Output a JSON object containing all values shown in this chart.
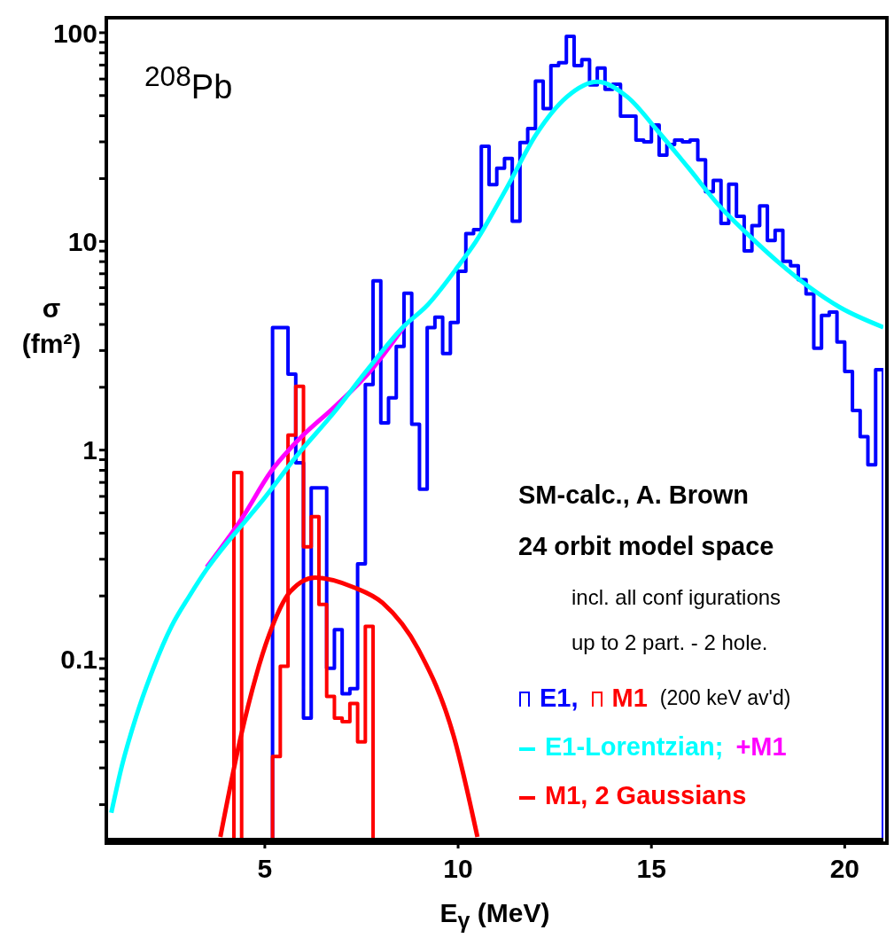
{
  "chart_data": {
    "type": "line",
    "xlabel": "E$_{γ}$ (MeV)",
    "ylabel": "σ (fm²)",
    "log": "y",
    "xlim": [
      0.9,
      21
    ],
    "xticks": [
      5,
      10,
      15,
      20
    ],
    "ylim": [
      0.0136,
      118
    ],
    "yticks": [
      {
        "value": 0.02,
        "label": null
      },
      {
        "value": 0.03,
        "label": null
      },
      {
        "value": 0.04,
        "label": null
      },
      {
        "value": 0.05,
        "label": null
      },
      {
        "value": 0.06,
        "label": null
      },
      {
        "value": 0.07,
        "label": null
      },
      {
        "value": 0.08,
        "label": null
      },
      {
        "value": 0.09,
        "label": null
      },
      0.1,
      {
        "value": 0.2,
        "label": null
      },
      {
        "value": 0.3,
        "label": null
      },
      {
        "value": 0.4,
        "label": null
      },
      {
        "value": 0.5,
        "label": null
      },
      {
        "value": 0.6,
        "label": null
      },
      {
        "value": 0.7,
        "label": null
      },
      {
        "value": 0.8,
        "label": null
      },
      {
        "value": 0.9,
        "label": null
      },
      1,
      {
        "value": 2,
        "label": null
      },
      {
        "value": 3,
        "label": null
      },
      {
        "value": 4,
        "label": null
      },
      {
        "value": 5,
        "label": null
      },
      {
        "value": 6,
        "label": null
      },
      {
        "value": 7,
        "label": null
      },
      {
        "value": 8,
        "label": null
      },
      {
        "value": 9,
        "label": null
      },
      10,
      {
        "value": 20,
        "label": null
      },
      {
        "value": 30,
        "label": null
      },
      {
        "value": 40,
        "label": null
      },
      {
        "value": 50,
        "label": null
      },
      {
        "value": 60,
        "label": null
      },
      {
        "value": 70,
        "label": null
      },
      {
        "value": 80,
        "label": null
      },
      {
        "value": 90,
        "label": null
      },
      100
    ],
    "legend": "bottom right",
    "annotations": [
      "$^{208}$Pb",
      "SM-calc., A. Brown",
      "24 orbit model space",
      "incl. all conf igurations",
      "up to 2 part. - 2 hole.",
      "(200 keV av'd)"
    ],
    "series": [
      {
        "name": "E1,",
        "type": "histogram",
        "color": "#0000ff",
        "bins": [
          5.2,
          5.4,
          5.6,
          5.8,
          6.0,
          6.2,
          6.4,
          6.6,
          6.8,
          7.0,
          7.2,
          7.4,
          7.6,
          7.8,
          8.0,
          8.2,
          8.4,
          8.6,
          8.8,
          9.0,
          9.2,
          9.4,
          9.6,
          9.8,
          10.0,
          10.2,
          10.4,
          10.6,
          10.8,
          11.0,
          11.2,
          11.4,
          11.6,
          11.8,
          12.0,
          12.2,
          12.4,
          12.6,
          12.8,
          13.0,
          13.2,
          13.4,
          13.6,
          13.8,
          14.0,
          14.2,
          14.4,
          14.6,
          14.8,
          15.0,
          15.2,
          15.4,
          15.6,
          15.8,
          16.0,
          16.2,
          16.4,
          16.6,
          16.8,
          17.0,
          17.2,
          17.4,
          17.6,
          17.8,
          18.0,
          18.2,
          18.4,
          18.6,
          18.8,
          19.0,
          19.2,
          19.4,
          19.6,
          19.8,
          20.0,
          20.2,
          20.4,
          20.6,
          20.8,
          21.0
        ],
        "values": [
          3.86,
          3.86,
          2.31,
          0.87,
          0.052,
          0.66,
          0.66,
          0.09,
          0.138,
          0.068,
          0.072,
          0.285,
          2.06,
          6.47,
          1.35,
          1.78,
          3.14,
          5.65,
          1.33,
          0.65,
          3.86,
          4.34,
          2.9,
          4.09,
          7.2,
          10.9,
          11.4,
          28.6,
          18.7,
          22.4,
          25.0,
          12.5,
          29.8,
          34.7,
          58.6,
          43.3,
          69.5,
          71.9,
          96,
          69.5,
          74.3,
          56.3,
          67.8,
          53.6,
          56.7,
          39.8,
          39.8,
          30.6,
          30,
          36.1,
          25.9,
          29.1,
          30.6,
          30,
          30.6,
          24.6,
          17.3,
          19.6,
          12.2,
          18.8,
          13.2,
          9.0,
          11.9,
          14.8,
          10.1,
          11.3,
          8.03,
          7.64,
          6.56,
          5.6,
          3.08,
          4.42,
          4.59,
          3.3,
          2.38,
          1.55,
          1.16,
          0.85,
          2.43
        ]
      },
      {
        "name": "M1",
        "type": "histogram",
        "color": "#ff0000",
        "bins": [
          5.2,
          5.4,
          5.6,
          5.8,
          6.0,
          6.2,
          6.4,
          6.6,
          6.8,
          7.0,
          7.2,
          7.4,
          7.6,
          7.8
        ],
        "values": [
          0.034,
          0.092,
          1.18,
          2.02,
          0.344,
          0.48,
          0.182,
          0.066,
          0.052,
          0.05,
          0.061,
          0.04,
          0.143
        ]
      },
      {
        "type": "histogram",
        "color": "#ff0000",
        "bins": [
          4.2,
          4.4
        ],
        "values": [
          0.78
        ]
      },
      {
        "name": "+M1",
        "type": "line",
        "color": "#ff00ff",
        "x": [
          3.5,
          4.42,
          5.16,
          5.89,
          6.8,
          7.72,
          8.64
        ],
        "values": [
          0.275,
          0.475,
          0.79,
          1.13,
          1.61,
          2.38,
          4.0
        ]
      },
      {
        "name": "E1-Lorentzian;",
        "type": "line",
        "color": "#00ffff",
        "x": [
          1.03,
          1.3,
          1.67,
          2.13,
          2.59,
          3.05,
          3.5,
          3.96,
          4.42,
          4.88,
          5.85,
          6.77,
          7.68,
          8.6,
          9.17,
          10.0,
          10.46,
          11.24,
          12.03,
          12.81,
          13.6,
          14.38,
          15.16,
          15.95,
          16.73,
          17.52,
          18.3,
          19.09,
          19.87,
          21.0
        ],
        "values": [
          0.0183,
          0.0305,
          0.0527,
          0.0914,
          0.1435,
          0.2,
          0.269,
          0.348,
          0.44,
          0.556,
          0.95,
          1.5,
          2.46,
          3.93,
          4.87,
          7.6,
          10.0,
          17.8,
          32.8,
          49.2,
          58.2,
          49.2,
          33.9,
          22.6,
          15.0,
          10.7,
          7.9,
          6.03,
          4.84,
          3.88
        ]
      },
      {
        "name": "M1, 2 Gaussians",
        "type": "line",
        "color": "#ff0000",
        "x": [
          3.85,
          4.37,
          5.11,
          5.66,
          6.3,
          7.3,
          8.05,
          8.97,
          9.9,
          10.5
        ],
        "values": [
          0.014,
          0.0417,
          0.13,
          0.21,
          0.245,
          0.22,
          0.185,
          0.111,
          0.0417,
          0.014
        ]
      }
    ]
  }
}
